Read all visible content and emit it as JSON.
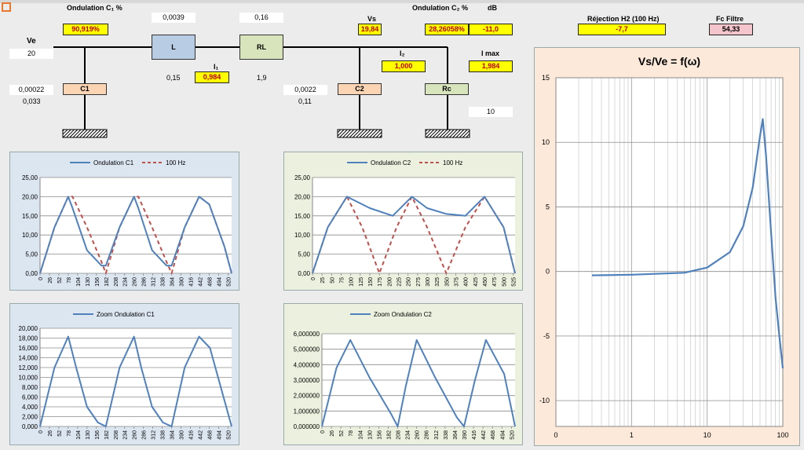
{
  "header": {
    "ondulation_c1_label": "Ondulation C₁ %",
    "ondulation_c2_label": "Ondulation C₂ %",
    "db_label": "dB",
    "rejection_label": "Réjection H2 (100 Hz)",
    "fc_label": "Fc Filtre"
  },
  "circuit": {
    "ve_label": "Ve",
    "ve_value": "20",
    "ondulation_c1_value": "90,919%",
    "l_value": "0,0039",
    "rl_value": "0,16",
    "l_label": "L",
    "rl_label": "RL",
    "i1_label": "I₁",
    "i1_value": "0,984",
    "left_val": "0,15",
    "right_val": "1,9",
    "c1_label": "C1",
    "c1_value": "0,00022",
    "c1_sub": "0,033",
    "vs_label": "Vs",
    "vs_value": "19,84",
    "ondulation_c2_value": "28,26058%",
    "db_value": "-11,0",
    "i2_label": "I₂",
    "i2_value": "1,000",
    "imax_label": "I max",
    "imax_value": "1,984",
    "c2_label": "C2",
    "c2_value": "0,0022",
    "c2_sub": "0,11",
    "rc_label": "Rc",
    "rc_value": "10",
    "rejection_value": "-7,7",
    "fc_value": "54,33"
  },
  "charts": {
    "c1": {
      "legend_a": "Ondulation C1",
      "legend_b": "100 Hz",
      "yticks": [
        "25,00",
        "20,00",
        "15,00",
        "10,00",
        "5,00",
        "0,00"
      ],
      "xticks": [
        "0",
        "26",
        "52",
        "78",
        "104",
        "130",
        "156",
        "182",
        "208",
        "234",
        "260",
        "286",
        "312",
        "338",
        "364",
        "390",
        "416",
        "442",
        "468",
        "494",
        "520"
      ]
    },
    "c2": {
      "legend_a": "Ondulation C2",
      "legend_b": "100 Hz",
      "yticks": [
        "25,00",
        "20,00",
        "15,00",
        "10,00",
        "5,00",
        "0,00"
      ],
      "xticks": [
        "0",
        "25",
        "50",
        "75",
        "100",
        "125",
        "150",
        "175",
        "200",
        "225",
        "250",
        "275",
        "300",
        "325",
        "350",
        "375",
        "400",
        "425",
        "450",
        "475",
        "500",
        "525"
      ]
    },
    "zc1": {
      "legend_a": "Zoom Ondulation C1",
      "yticks": [
        "20,000",
        "18,000",
        "16,000",
        "14,000",
        "12,000",
        "10,000",
        "8,000",
        "6,000",
        "4,000",
        "2,000",
        "0,000"
      ],
      "xticks": [
        "0",
        "26",
        "52",
        "78",
        "104",
        "130",
        "156",
        "182",
        "208",
        "234",
        "260",
        "286",
        "312",
        "338",
        "364",
        "390",
        "416",
        "442",
        "468",
        "494",
        "520"
      ]
    },
    "zc2": {
      "legend_a": "Zoom Ondulation C2",
      "yticks": [
        "6,000000",
        "5,000000",
        "4,000000",
        "3,000000",
        "2,000000",
        "1,000000",
        "0,000000"
      ],
      "xticks": [
        "0",
        "26",
        "52",
        "78",
        "104",
        "130",
        "156",
        "182",
        "208",
        "234",
        "260",
        "286",
        "312",
        "338",
        "364",
        "390",
        "416",
        "442",
        "468",
        "494",
        "520"
      ]
    },
    "bode": {
      "title": "Vs/Ve = f(ω)",
      "yticks": [
        "15",
        "10",
        "5",
        "0",
        "-5",
        "-10"
      ],
      "xticks": [
        "0",
        "1",
        "10",
        "100"
      ]
    }
  },
  "colors": {
    "series_blue": "#4f81bd",
    "series_red": "#c0504d",
    "c1_bg": "#dce6f1",
    "c2_bg": "#ebf1de",
    "bode_bg": "#fde9d9"
  },
  "chart_data": [
    {
      "type": "line",
      "id": "ondulation_c1",
      "ylim": [
        0,
        25
      ],
      "series": [
        {
          "name": "Ondulation C1",
          "x": [
            0,
            40,
            78,
            90,
            130,
            170,
            182,
            220,
            260,
            272,
            310,
            350,
            364,
            400,
            440,
            468,
            510,
            530
          ],
          "values": [
            0,
            12,
            20,
            17,
            6,
            2,
            2,
            12,
            20,
            17,
            6,
            2,
            2,
            12,
            20,
            18,
            7,
            0
          ]
        },
        {
          "name": "100 Hz",
          "x": [
            0,
            40,
            78,
            90,
            130,
            170,
            182,
            220,
            260,
            272,
            310,
            350,
            364,
            400,
            440,
            468,
            510,
            530
          ],
          "values": [
            0,
            12,
            20,
            20,
            12,
            3,
            0,
            12,
            20,
            20,
            12,
            3,
            0,
            12,
            20,
            18,
            7,
            0
          ]
        }
      ]
    },
    {
      "type": "line",
      "id": "ondulation_c2",
      "ylim": [
        0,
        25
      ],
      "series": [
        {
          "name": "Ondulation C2",
          "x": [
            0,
            40,
            90,
            150,
            210,
            260,
            300,
            350,
            400,
            450,
            500,
            530
          ],
          "values": [
            0,
            12,
            20,
            17,
            15,
            20,
            17,
            15.5,
            15,
            20,
            12,
            0
          ]
        },
        {
          "name": "100 Hz",
          "x": [
            0,
            40,
            90,
            130,
            175,
            220,
            260,
            300,
            350,
            400,
            450,
            500,
            530
          ],
          "values": [
            0,
            12,
            20,
            12,
            0,
            12,
            20,
            12,
            0,
            12,
            20,
            12,
            0
          ]
        }
      ]
    },
    {
      "type": "line",
      "id": "zoom_c1",
      "ylim": [
        0,
        20
      ],
      "series": [
        {
          "name": "Zoom Ondulation C1",
          "x": [
            0,
            40,
            78,
            100,
            130,
            160,
            182,
            220,
            260,
            280,
            310,
            340,
            364,
            400,
            440,
            470,
            500,
            530
          ],
          "values": [
            0,
            12,
            18.3,
            12,
            4,
            0.8,
            0,
            12,
            18.3,
            12,
            4,
            0.8,
            0,
            12,
            18.3,
            16,
            8,
            0
          ]
        }
      ]
    },
    {
      "type": "line",
      "id": "zoom_c2",
      "ylim": [
        0,
        6
      ],
      "series": [
        {
          "name": "Zoom Ondulation C2",
          "x": [
            0,
            40,
            78,
            130,
            190,
            208,
            230,
            260,
            310,
            370,
            390,
            420,
            450,
            500,
            530
          ],
          "values": [
            0,
            3.8,
            5.6,
            3.2,
            0.8,
            0,
            2.6,
            5.6,
            3.2,
            0.6,
            0,
            3,
            5.6,
            3.4,
            0
          ]
        }
      ]
    },
    {
      "type": "line",
      "id": "bode",
      "title": "Vs/Ve = f(ω)",
      "x_scale": "log",
      "xlim": [
        0.1,
        100
      ],
      "ylim": [
        -12,
        15
      ],
      "series": [
        {
          "name": "Vs/Ve",
          "x": [
            0.3,
            1,
            5,
            10,
            20,
            30,
            40,
            50,
            54.33,
            60,
            70,
            80,
            90,
            100
          ],
          "values": [
            -0.3,
            -0.25,
            -0.1,
            0.3,
            1.5,
            3.5,
            6.5,
            10.5,
            11.8,
            9,
            3,
            -2,
            -5,
            -7.5
          ]
        }
      ]
    }
  ]
}
